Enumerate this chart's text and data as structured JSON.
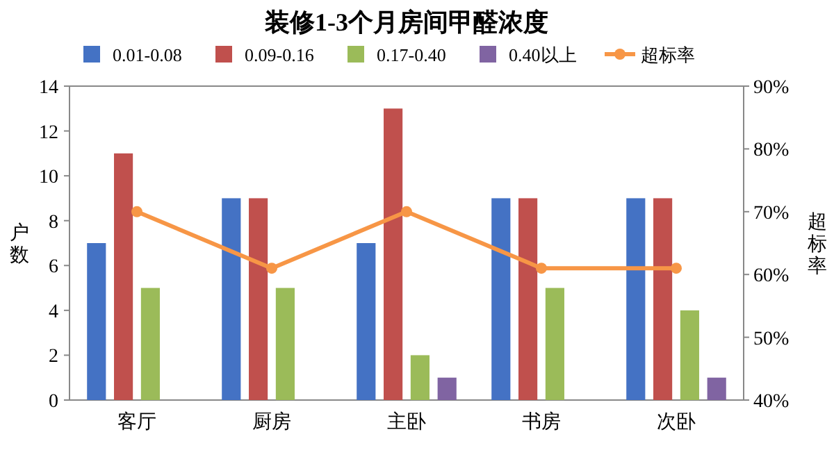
{
  "chart_data": {
    "type": "bar",
    "title": "装修1-3个月房间甲醛浓度",
    "ylabel": "户数",
    "y2label": "超标率",
    "categories": [
      "客厅",
      "厨房",
      "主卧",
      "书房",
      "次卧"
    ],
    "series": [
      {
        "name": "0.01-0.08",
        "color": "#4472c4",
        "values": [
          7,
          9,
          7,
          9,
          9
        ]
      },
      {
        "name": "0.09-0.16",
        "color": "#c0504d",
        "values": [
          11,
          9,
          13,
          9,
          9
        ]
      },
      {
        "name": "0.17-0.40",
        "color": "#9bbb59",
        "values": [
          5,
          5,
          2,
          5,
          4
        ]
      },
      {
        "name": "0.40以上",
        "color": "#8064a2",
        "values": [
          0,
          0,
          1,
          0,
          1
        ]
      },
      {
        "name": "超标率",
        "type": "line",
        "axis": "y2",
        "color": "#f79646",
        "marker": "circle",
        "values": [
          70,
          61,
          70,
          61,
          61
        ]
      }
    ],
    "ylim": [
      0,
      14
    ],
    "yticks": [
      0,
      2,
      4,
      6,
      8,
      10,
      12,
      14
    ],
    "y2lim": [
      40,
      90
    ],
    "y2ticks": [
      {
        "value": 40,
        "label": "40%"
      },
      {
        "value": 50,
        "label": "50%"
      },
      {
        "value": 60,
        "label": "60%"
      },
      {
        "value": 70,
        "label": "70%"
      },
      {
        "value": 80,
        "label": "80%"
      },
      {
        "value": 90,
        "label": "90%"
      }
    ],
    "legend": "top"
  }
}
